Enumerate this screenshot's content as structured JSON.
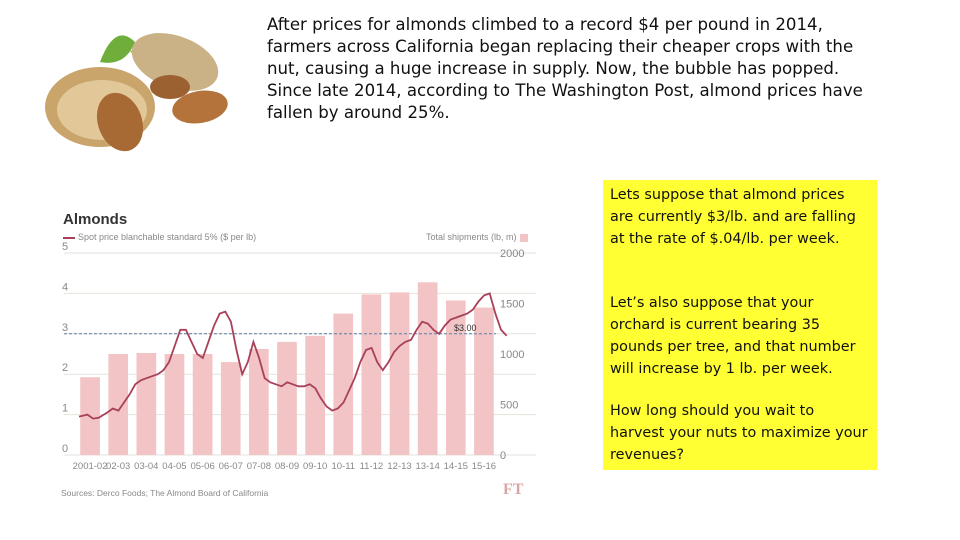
{
  "intro_text": "After prices for almonds climbed to a record $4 per pound in 2014, farmers across California began replacing their cheaper crops with the nut, causing a huge increase in supply. Now, the bubble has popped. Since late 2014, according to The Washington Post, almond prices have fallen by around 25%.",
  "side_box": {
    "paragraph_1": "Lets suppose that almond prices are currently $3/lb. and are falling at the rate of $.04/lb. per week.",
    "paragraph_2": "Let’s also suppose that your orchard is current bearing 35 pounds per tree, and that number will increase by 1 lb. per week.",
    "paragraph_3": "How long should you wait to harvest your nuts to maximize your revenues?",
    "background_color": "#ffff33"
  },
  "chart_data": {
    "type": "bar",
    "title": "Almonds",
    "legend_line": "Spot price blanchable standard 5% ($ per lb)",
    "legend_bars": "Total shipments (lb, m)",
    "source": "Sources: Derco Foods; The Almond Board of California",
    "publisher_logo": "FT",
    "categories": [
      "2001-02",
      "02-03",
      "03-04",
      "04-05",
      "05-06",
      "06-07",
      "07-08",
      "08-09",
      "09-10",
      "10-11",
      "11-12",
      "12-13",
      "13-14",
      "14-15",
      "15-16"
    ],
    "left_axis": {
      "ticks": [
        "0",
        "1",
        "2",
        "3",
        "4",
        "5"
      ],
      "range": [
        0,
        5
      ]
    },
    "right_axis": {
      "ticks": [
        "0",
        "500",
        "1000",
        "1500",
        "2000"
      ],
      "range": [
        0,
        2000
      ]
    },
    "series": [
      {
        "name": "Total shipments (lb, m)",
        "kind": "bar",
        "color": "#f2c4c6",
        "values": [
          770,
          1000,
          1010,
          1000,
          1000,
          920,
          1050,
          1120,
          1180,
          1400,
          1590,
          1610,
          1710,
          1530,
          1460
        ]
      },
      {
        "name": "Spot price blanchable standard 5% ($ per lb)",
        "kind": "line",
        "color": "#a9405a",
        "x": [
          0.0,
          0.3,
          0.5,
          0.7,
          1.0,
          1.2,
          1.4,
          1.6,
          1.8,
          2.0,
          2.2,
          2.4,
          2.6,
          2.8,
          3.0,
          3.2,
          3.4,
          3.6,
          3.8,
          4.0,
          4.2,
          4.4,
          4.6,
          4.8,
          5.0,
          5.2,
          5.4,
          5.6,
          5.8,
          6.0,
          6.2,
          6.4,
          6.6,
          6.8,
          7.0,
          7.2,
          7.4,
          7.6,
          7.8,
          8.0,
          8.2,
          8.4,
          8.6,
          8.8,
          9.0,
          9.2,
          9.4,
          9.6,
          9.8,
          10.0,
          10.2,
          10.4,
          10.6,
          10.8,
          11.0,
          11.2,
          11.4,
          11.6,
          11.8,
          12.0,
          12.2,
          12.4,
          12.6,
          12.8,
          13.0,
          13.2,
          13.4,
          13.6,
          13.8,
          14.0,
          14.2,
          14.4,
          14.6,
          14.8,
          15.0,
          15.2
        ],
        "values": [
          0.95,
          1.0,
          0.9,
          0.92,
          1.05,
          1.15,
          1.1,
          1.3,
          1.5,
          1.75,
          1.85,
          1.9,
          1.95,
          2.0,
          2.1,
          2.3,
          2.7,
          3.1,
          3.1,
          2.8,
          2.5,
          2.4,
          2.8,
          3.2,
          3.5,
          3.55,
          3.3,
          2.6,
          2.0,
          2.3,
          2.8,
          2.4,
          1.9,
          1.8,
          1.75,
          1.7,
          1.8,
          1.75,
          1.7,
          1.7,
          1.75,
          1.65,
          1.4,
          1.2,
          1.1,
          1.15,
          1.3,
          1.6,
          1.9,
          2.3,
          2.6,
          2.65,
          2.3,
          2.1,
          2.3,
          2.55,
          2.7,
          2.8,
          2.85,
          3.1,
          3.3,
          3.25,
          3.1,
          3.0,
          3.2,
          3.35,
          3.4,
          3.45,
          3.5,
          3.6,
          3.8,
          3.95,
          4.0,
          3.5,
          3.1,
          2.95
        ]
      }
    ],
    "reference_line": {
      "value": 3.0,
      "label": "$3.00",
      "color": "#5b7fa8"
    }
  }
}
